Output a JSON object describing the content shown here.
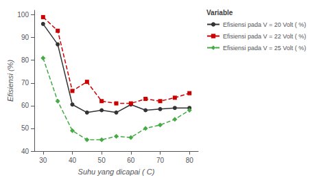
{
  "chart_data": {
    "type": "line",
    "x": [
      30,
      35,
      40,
      45,
      50,
      55,
      60,
      65,
      70,
      75,
      80
    ],
    "series": [
      {
        "name": "Efisiensi pada V = 20 Volt ( %)",
        "color": "#333333",
        "marker": "circle",
        "line_style": "solid",
        "values": [
          96,
          87,
          60.5,
          57,
          58,
          57,
          60.5,
          58,
          58.5,
          59,
          59
        ]
      },
      {
        "name": "Efisiensi pada V = 22 Volt ( %)",
        "color": "#cc0000",
        "marker": "square",
        "line_style": "dashed",
        "values": [
          99,
          93,
          66.5,
          70.5,
          62,
          61,
          61,
          63,
          62,
          63.5,
          65.5
        ]
      },
      {
        "name": "Efisiensi pada V = 25 Volt ( %)",
        "color": "#44aa44",
        "marker": "diamond",
        "line_style": "dashed",
        "values": [
          81,
          62,
          49,
          45,
          45,
          46.5,
          46,
          50,
          51.5,
          54,
          58
        ]
      }
    ],
    "xlabel": "Suhu yang dicapai ( C)",
    "ylabel": "Efisiensi (%)",
    "legend_title": "Variable",
    "legend": "right",
    "xlim": [
      27,
      83
    ],
    "ylim": [
      40,
      102
    ],
    "xticks": [
      30,
      40,
      50,
      60,
      70,
      80
    ],
    "yticks": [
      40,
      50,
      60,
      70,
      80,
      90,
      100
    ],
    "grid": false
  }
}
